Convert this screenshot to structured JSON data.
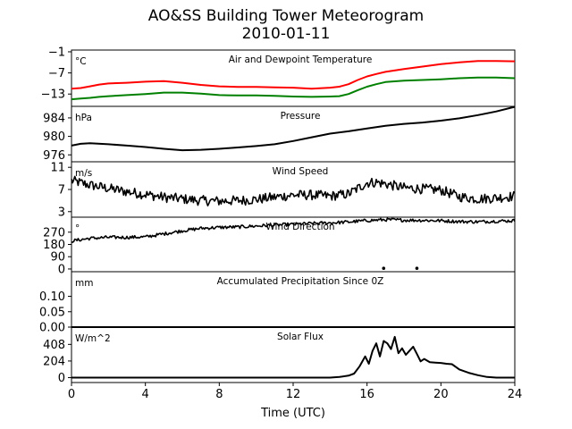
{
  "figure": {
    "title": "AO&SS Building Tower Meteorogram",
    "subtitle": "2010-01-11",
    "xlabel": "Time (UTC)"
  },
  "chart_data": [
    {
      "type": "line",
      "title": "Air and Dewpoint Temperature",
      "unit": "°C",
      "xlim": [
        0,
        24
      ],
      "xticks": [
        "0",
        "4",
        "8",
        "12",
        "16",
        "20",
        "24"
      ],
      "ylim": [
        -16.5,
        -0.5
      ],
      "yticks": [
        -1,
        -7,
        -13
      ],
      "ytick_labels": [
        "−1",
        "−7",
        "−13"
      ],
      "grid": false,
      "series": [
        {
          "color": "#ff0000",
          "x": [
            0,
            0.5,
            1,
            1.5,
            2,
            3,
            4,
            5,
            6,
            7,
            8,
            9,
            10,
            11,
            12,
            13,
            14,
            14.5,
            15,
            15.5,
            16,
            16.5,
            17,
            18,
            19,
            20,
            21,
            22,
            23,
            24
          ],
          "y": [
            -11.5,
            -11.3,
            -10.8,
            -10.3,
            -10.0,
            -9.8,
            -9.5,
            -9.3,
            -9.8,
            -10.4,
            -10.8,
            -11.0,
            -11.0,
            -11.1,
            -11.2,
            -11.5,
            -11.2,
            -10.9,
            -10.2,
            -9.0,
            -8.0,
            -7.3,
            -6.7,
            -5.9,
            -5.2,
            -4.5,
            -4.0,
            -3.6,
            -3.6,
            -3.7
          ]
        },
        {
          "color": "#008000",
          "x": [
            0,
            0.5,
            1,
            1.5,
            2,
            3,
            4,
            5,
            6,
            7,
            8,
            9,
            10,
            11,
            12,
            13,
            14,
            14.5,
            15,
            15.5,
            16,
            16.5,
            17,
            18,
            19,
            20,
            21,
            22,
            23,
            24
          ],
          "y": [
            -14.5,
            -14.3,
            -14.1,
            -13.8,
            -13.6,
            -13.3,
            -13.0,
            -12.6,
            -12.6,
            -12.9,
            -13.3,
            -13.4,
            -13.4,
            -13.5,
            -13.7,
            -13.8,
            -13.7,
            -13.6,
            -13.0,
            -11.9,
            -10.9,
            -10.2,
            -9.6,
            -9.2,
            -9.0,
            -8.8,
            -8.5,
            -8.3,
            -8.3,
            -8.5
          ]
        }
      ]
    },
    {
      "type": "line",
      "title": "Pressure",
      "unit": "hPa",
      "ylim": [
        974.5,
        986.5
      ],
      "yticks": [
        976,
        980,
        984
      ],
      "ytick_labels": [
        "976",
        "980",
        "984"
      ],
      "grid": false,
      "series": [
        {
          "color": "#000000",
          "x": [
            0,
            0.5,
            1,
            2,
            3,
            4,
            5,
            6,
            7,
            8,
            9,
            10,
            11,
            12,
            13,
            14,
            15,
            16,
            17,
            18,
            19,
            20,
            21,
            22,
            23,
            24
          ],
          "y": [
            978.0,
            978.4,
            978.5,
            978.3,
            978.0,
            977.7,
            977.3,
            977.0,
            977.1,
            977.3,
            977.6,
            977.9,
            978.3,
            979.0,
            979.8,
            980.6,
            981.1,
            981.7,
            982.3,
            982.7,
            983.0,
            983.4,
            983.9,
            984.6,
            985.4,
            986.4
          ]
        }
      ]
    },
    {
      "type": "line",
      "title": "Wind Speed",
      "unit": "m/s",
      "ylim": [
        2.0,
        12.0
      ],
      "yticks": [
        3,
        7,
        11
      ],
      "ytick_labels": [
        "3",
        "7",
        "11"
      ],
      "grid": false,
      "noisy": true,
      "series": [
        {
          "color": "#000000",
          "x": [
            0,
            0.5,
            1,
            1.5,
            2,
            2.5,
            3,
            4,
            5,
            6,
            7,
            8,
            9,
            10,
            11,
            12,
            13,
            14,
            15,
            15.5,
            16,
            16.5,
            17,
            18,
            19,
            20,
            20.5,
            21,
            22,
            23,
            24
          ],
          "y": [
            8.6,
            8.2,
            7.8,
            7.5,
            7.2,
            6.9,
            6.6,
            6.1,
            5.6,
            5.3,
            5.0,
            4.9,
            5.0,
            5.2,
            5.6,
            6.0,
            6.0,
            5.8,
            6.2,
            7.2,
            8.2,
            8.3,
            8.0,
            7.3,
            7.1,
            6.9,
            6.3,
            5.7,
            5.3,
            5.5,
            5.8
          ]
        }
      ]
    },
    {
      "type": "line",
      "title": "Wind Direction",
      "unit": "°",
      "ylim": [
        -20,
        380
      ],
      "yticks": [
        0,
        90,
        180,
        270
      ],
      "ytick_labels": [
        "0",
        "90",
        "180",
        "270"
      ],
      "grid": false,
      "noisy": true,
      "series": [
        {
          "color": "#000000",
          "x": [
            0,
            0.5,
            1,
            2,
            3,
            4,
            5,
            6,
            7,
            8,
            9,
            10,
            11,
            12,
            13,
            14,
            15,
            16,
            17,
            18,
            19,
            20,
            21,
            22,
            23,
            24
          ],
          "y": [
            205,
            215,
            225,
            232,
            232,
            235,
            258,
            280,
            298,
            305,
            308,
            315,
            322,
            327,
            334,
            338,
            345,
            355,
            362,
            358,
            357,
            354,
            348,
            346,
            351,
            354
          ]
        }
      ],
      "points": [
        {
          "x": 16.9,
          "y": 5
        },
        {
          "x": 18.7,
          "y": 5
        }
      ]
    },
    {
      "type": "line",
      "title": "Accumulated Precipitation Since 0Z",
      "unit": "mm",
      "ylim": [
        0,
        0.18
      ],
      "yticks": [
        0.0,
        0.05,
        0.1
      ],
      "ytick_labels": [
        "0.00",
        "0.05",
        "0.10"
      ],
      "grid": false,
      "series": [
        {
          "color": "#000000",
          "x": [
            0,
            24
          ],
          "y": [
            0,
            0
          ]
        }
      ]
    },
    {
      "type": "line",
      "title": "Solar Flux",
      "unit": "W/m^2",
      "ylim": [
        -60,
        620
      ],
      "yticks": [
        0,
        204,
        408
      ],
      "ytick_labels": [
        "0",
        "204",
        "408"
      ],
      "grid": false,
      "series": [
        {
          "color": "#000000",
          "x": [
            0,
            14,
            14.5,
            15,
            15.3,
            15.6,
            15.9,
            16.1,
            16.3,
            16.5,
            16.7,
            16.9,
            17.1,
            17.3,
            17.5,
            17.7,
            17.9,
            18.1,
            18.3,
            18.5,
            18.7,
            18.9,
            19.1,
            19.4,
            19.7,
            20.0,
            20.3,
            20.6,
            21,
            21.5,
            22,
            22.5,
            23,
            24
          ],
          "y": [
            0,
            0,
            8,
            25,
            50,
            140,
            260,
            170,
            330,
            420,
            260,
            450,
            420,
            350,
            500,
            300,
            360,
            280,
            330,
            380,
            290,
            200,
            230,
            190,
            185,
            180,
            170,
            165,
            100,
            60,
            30,
            8,
            0,
            0
          ]
        }
      ]
    }
  ]
}
